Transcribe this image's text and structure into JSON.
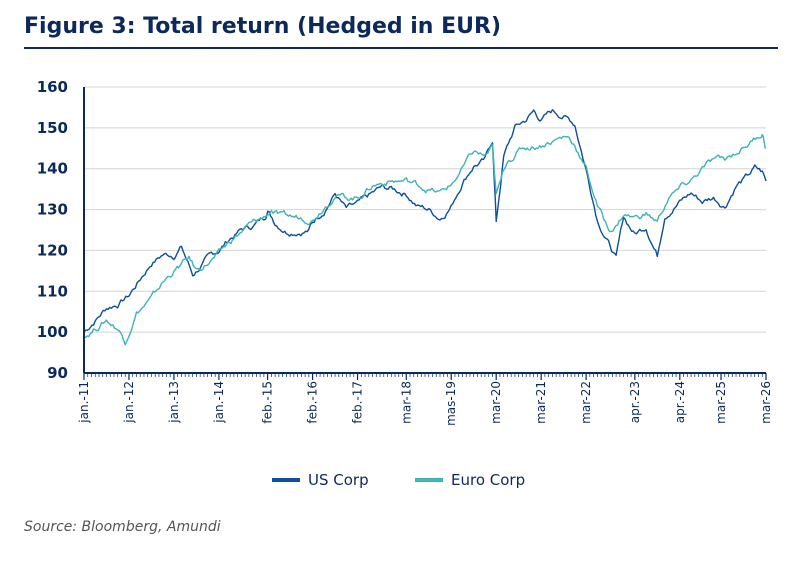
{
  "title": "Figure 3: Total return (Hedged in EUR)",
  "source": "Source: Bloomberg, Amundi",
  "chart_data": {
    "type": "line",
    "xlabel": "",
    "ylabel": "",
    "ylim": [
      90,
      160
    ],
    "yticks": [
      90,
      100,
      110,
      120,
      130,
      140,
      150,
      160
    ],
    "xlim": [
      "2011-01",
      "2026-03"
    ],
    "xticks": [
      {
        "label": "jan.-11",
        "date": "2011-01"
      },
      {
        "label": "jan.-12",
        "date": "2012-01"
      },
      {
        "label": "jan.-13",
        "date": "2013-01"
      },
      {
        "label": "jan.-14",
        "date": "2014-01"
      },
      {
        "label": "feb.-15",
        "date": "2015-02"
      },
      {
        "label": "feb.-16",
        "date": "2016-02"
      },
      {
        "label": "feb.-17",
        "date": "2017-02"
      },
      {
        "label": "mar-18",
        "date": "2018-03"
      },
      {
        "label": "mas-19",
        "date": "2019-03"
      },
      {
        "label": "mar-20",
        "date": "2020-03"
      },
      {
        "label": "mar-21",
        "date": "2021-03"
      },
      {
        "label": "mar-22",
        "date": "2022-03"
      },
      {
        "label": "apr.-23",
        "date": "2023-04"
      },
      {
        "label": "apr.-24",
        "date": "2024-04"
      },
      {
        "label": "mar-25",
        "date": "2025-03"
      },
      {
        "label": "mar-26",
        "date": "2026-03"
      }
    ],
    "grid": "horizontal",
    "legend": "bottom-center",
    "series": [
      {
        "name": "US Corp",
        "color": "#0d4f9e",
        "points": [
          [
            "2011-01",
            100
          ],
          [
            "2011-04",
            103
          ],
          [
            "2011-07",
            106
          ],
          [
            "2011-10",
            107
          ],
          [
            "2012-01",
            109
          ],
          [
            "2012-04",
            113
          ],
          [
            "2012-07",
            117
          ],
          [
            "2012-10",
            119
          ],
          [
            "2013-01",
            119
          ],
          [
            "2013-03",
            121
          ],
          [
            "2013-06",
            114
          ],
          [
            "2013-09",
            117
          ],
          [
            "2014-01",
            120
          ],
          [
            "2014-04",
            123
          ],
          [
            "2014-07",
            125
          ],
          [
            "2014-10",
            126
          ],
          [
            "2015-01",
            128
          ],
          [
            "2015-02",
            130
          ],
          [
            "2015-04",
            127
          ],
          [
            "2015-07",
            125
          ],
          [
            "2015-10",
            125
          ],
          [
            "2016-01",
            125
          ],
          [
            "2016-02",
            127
          ],
          [
            "2016-05",
            130
          ],
          [
            "2016-08",
            134
          ],
          [
            "2016-11",
            130
          ],
          [
            "2017-02",
            131
          ],
          [
            "2017-05",
            133
          ],
          [
            "2017-08",
            135
          ],
          [
            "2017-11",
            135
          ],
          [
            "2018-03",
            134
          ],
          [
            "2018-06",
            131
          ],
          [
            "2018-09",
            130
          ],
          [
            "2018-12",
            128
          ],
          [
            "2019-03",
            131
          ],
          [
            "2019-06",
            137
          ],
          [
            "2019-09",
            141
          ],
          [
            "2019-12",
            142
          ],
          [
            "2020-02",
            147
          ],
          [
            "2020-03",
            127
          ],
          [
            "2020-05",
            143
          ],
          [
            "2020-08",
            150
          ],
          [
            "2020-11",
            152
          ],
          [
            "2021-01",
            154
          ],
          [
            "2021-03",
            152
          ],
          [
            "2021-06",
            154
          ],
          [
            "2021-09",
            153
          ],
          [
            "2021-12",
            151
          ],
          [
            "2022-03",
            140
          ],
          [
            "2022-06",
            128
          ],
          [
            "2022-09",
            122
          ],
          [
            "2022-11",
            118
          ],
          [
            "2023-01",
            128
          ],
          [
            "2023-04",
            124
          ],
          [
            "2023-07",
            126
          ],
          [
            "2023-10",
            119
          ],
          [
            "2023-12",
            129
          ],
          [
            "2024-04",
            132
          ],
          [
            "2024-07",
            134
          ],
          [
            "2024-10",
            132
          ],
          [
            "2025-01",
            133
          ],
          [
            "2025-04",
            131
          ],
          [
            "2025-07",
            136
          ],
          [
            "2025-10",
            138
          ],
          [
            "2025-12",
            140
          ],
          [
            "2026-02",
            139
          ],
          [
            "2026-03",
            137
          ]
        ]
      },
      {
        "name": "Euro Corp",
        "color": "#3fb3b5",
        "points": [
          [
            "2011-01",
            99
          ],
          [
            "2011-04",
            101
          ],
          [
            "2011-07",
            103
          ],
          [
            "2011-10",
            101
          ],
          [
            "2011-12",
            98
          ],
          [
            "2012-03",
            105
          ],
          [
            "2012-07",
            108
          ],
          [
            "2012-10",
            112
          ],
          [
            "2013-01",
            115
          ],
          [
            "2013-05",
            118
          ],
          [
            "2013-07",
            115
          ],
          [
            "2013-10",
            117
          ],
          [
            "2014-01",
            119
          ],
          [
            "2014-05",
            123
          ],
          [
            "2014-09",
            126
          ],
          [
            "2015-01",
            128
          ],
          [
            "2015-03",
            130
          ],
          [
            "2015-06",
            128
          ],
          [
            "2015-10",
            128
          ],
          [
            "2016-02",
            128
          ],
          [
            "2016-05",
            131
          ],
          [
            "2016-08",
            134
          ],
          [
            "2016-11",
            133
          ],
          [
            "2017-02",
            133
          ],
          [
            "2017-06",
            136
          ],
          [
            "2017-10",
            137
          ],
          [
            "2018-03",
            137
          ],
          [
            "2018-09",
            135
          ],
          [
            "2018-12",
            134
          ],
          [
            "2019-03",
            136
          ],
          [
            "2019-06",
            140
          ],
          [
            "2019-09",
            144
          ],
          [
            "2019-12",
            143
          ],
          [
            "2020-02",
            145
          ],
          [
            "2020-03",
            133
          ],
          [
            "2020-06",
            142
          ],
          [
            "2020-10",
            145
          ],
          [
            "2021-03",
            146
          ],
          [
            "2021-06",
            147
          ],
          [
            "2021-10",
            148
          ],
          [
            "2021-12",
            146
          ],
          [
            "2022-03",
            140
          ],
          [
            "2022-06",
            131
          ],
          [
            "2022-09",
            125
          ],
          [
            "2022-11",
            126
          ],
          [
            "2023-01",
            129
          ],
          [
            "2023-04",
            128
          ],
          [
            "2023-07",
            129
          ],
          [
            "2023-10",
            127
          ],
          [
            "2024-01",
            133
          ],
          [
            "2024-04",
            135
          ],
          [
            "2024-07",
            137
          ],
          [
            "2024-10",
            140
          ],
          [
            "2025-01",
            142
          ],
          [
            "2025-04",
            142
          ],
          [
            "2025-07",
            144
          ],
          [
            "2025-10",
            146
          ],
          [
            "2026-01",
            148
          ],
          [
            "2026-02",
            149
          ],
          [
            "2026-03",
            145
          ]
        ]
      }
    ]
  }
}
